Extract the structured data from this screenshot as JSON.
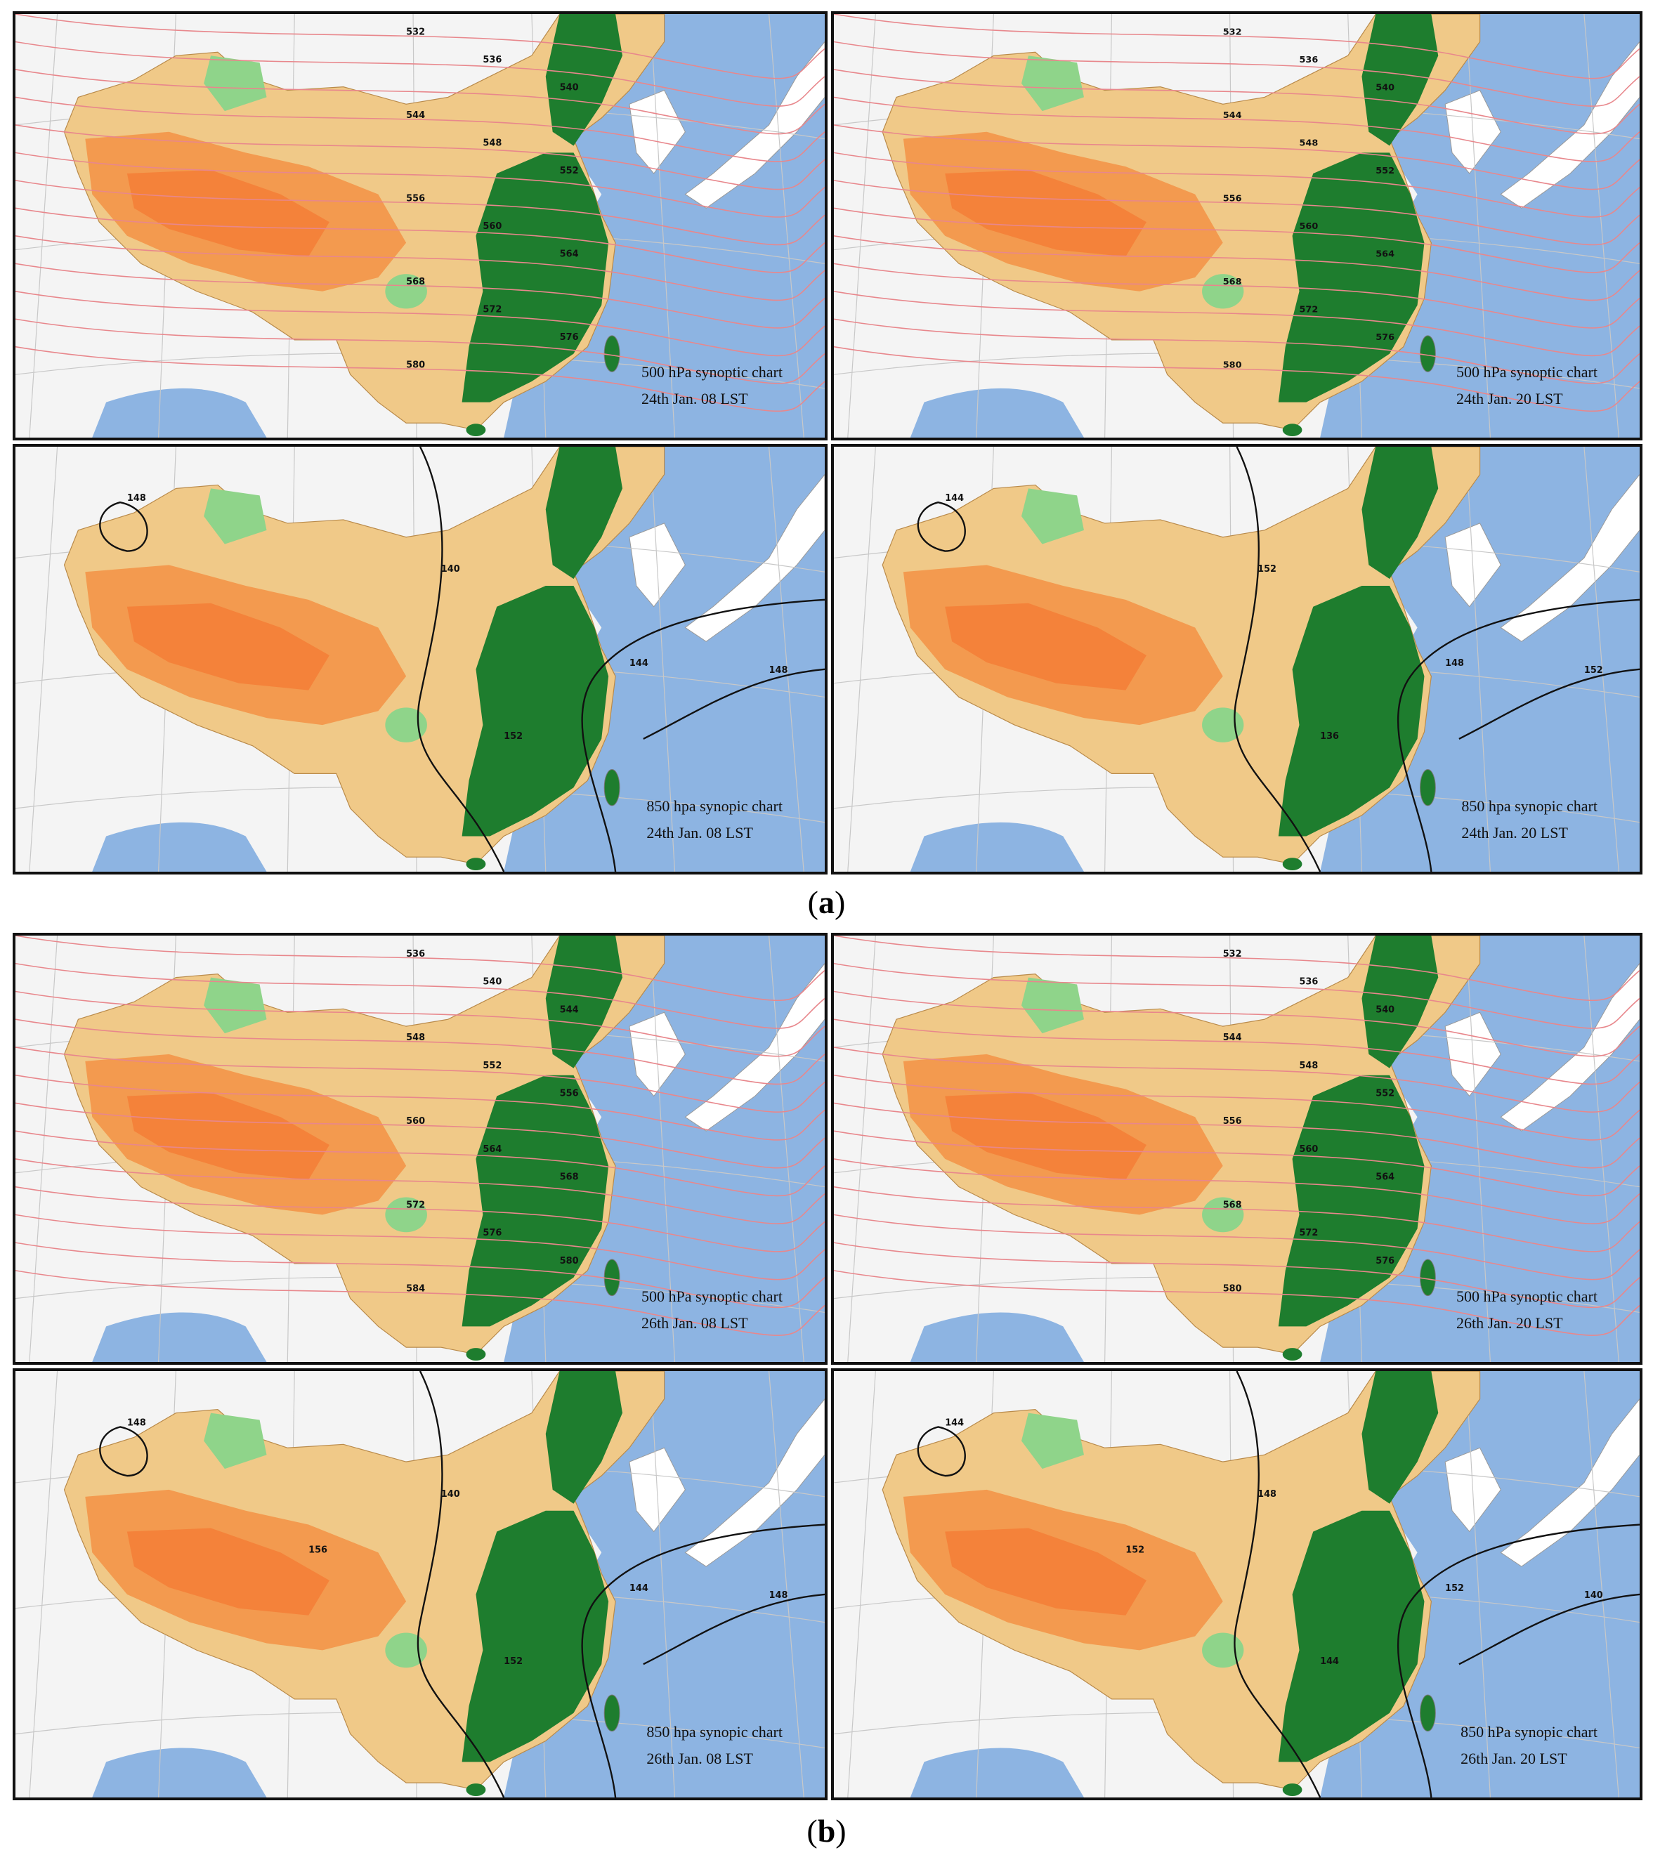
{
  "colors": {
    "ocean": "#8db4e2",
    "land_outside": "#f4f4f4",
    "desert": "#f0c988",
    "plateau": "#f39a4f",
    "plateau_core": "#f4823a",
    "lowland_green": "#1e7d2e",
    "light_green": "#8fd48a",
    "geopotential_500_line": "#e8878c",
    "geopotential_850_line": "#111111",
    "gridline": "#c8c8c8"
  },
  "parts": {
    "a": {
      "label_open": "(",
      "label_letter": "a",
      "label_close": ")"
    },
    "b": {
      "label_open": "(",
      "label_letter": "b",
      "label_close": ")"
    }
  },
  "panels": {
    "a_500_08": {
      "title": "500 hPa synoptic chart",
      "time": "24th Jan. 08 LST",
      "contours": [
        "532",
        "536",
        "540",
        "544",
        "548",
        "552",
        "556",
        "560",
        "564",
        "568",
        "572",
        "576",
        "580"
      ]
    },
    "a_500_20": {
      "title": "500 hPa synoptic chart",
      "time": "24th Jan. 20 LST",
      "contours": [
        "532",
        "536",
        "540",
        "544",
        "548",
        "552",
        "556",
        "560",
        "564",
        "568",
        "572",
        "576",
        "580"
      ]
    },
    "a_850_08": {
      "title": "850 hpa synopic chart",
      "time": "24th Jan. 08 LST",
      "contours": [
        "148",
        "140",
        "144",
        "148",
        "152"
      ]
    },
    "a_850_20": {
      "title": "850 hpa synopic chart",
      "time": "24th Jan. 20 LST",
      "contours": [
        "144",
        "152",
        "148",
        "152",
        "136"
      ]
    },
    "b_500_08": {
      "title": "500 hPa synoptic chart",
      "time": "26th Jan. 08 LST",
      "contours": [
        "536",
        "540",
        "544",
        "548",
        "552",
        "556",
        "560",
        "564",
        "568",
        "572",
        "576",
        "580",
        "584"
      ]
    },
    "b_500_20": {
      "title": "500 hPa synoptic chart",
      "time": "26th Jan. 20 LST",
      "contours": [
        "532",
        "536",
        "540",
        "544",
        "548",
        "552",
        "556",
        "560",
        "564",
        "568",
        "572",
        "576",
        "580"
      ]
    },
    "b_850_08": {
      "title": "850 hpa synopic chart",
      "time": "26th Jan. 08 LST",
      "contours": [
        "148",
        "140",
        "144",
        "148",
        "152",
        "156"
      ]
    },
    "b_850_20": {
      "title": "850 hPa synopic chart",
      "time": "26th Jan. 20 LST",
      "contours": [
        "144",
        "148",
        "152",
        "140",
        "144",
        "152"
      ]
    }
  }
}
